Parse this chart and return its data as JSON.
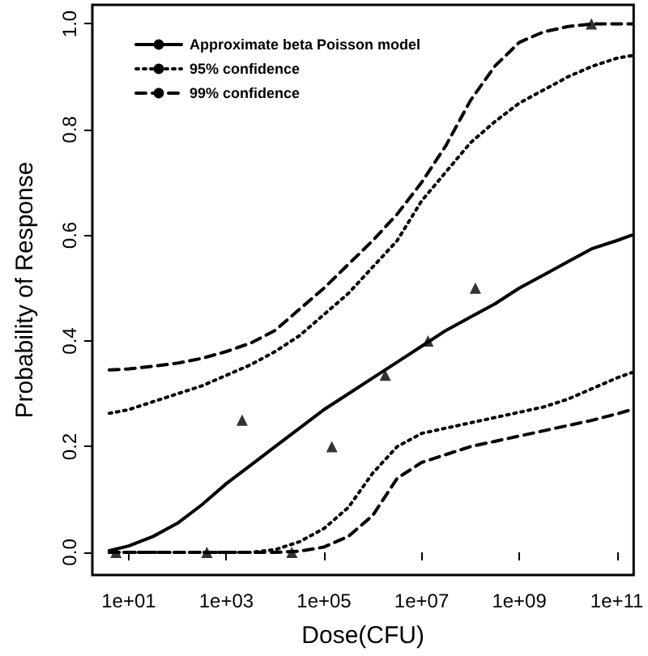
{
  "chart_data": {
    "type": "line",
    "xlabel": "Dose(CFU)",
    "ylabel": "Probability of Response",
    "x": [
      4,
      10,
      31.6,
      100,
      316,
      1000,
      3160,
      10000,
      31600,
      100000,
      316000,
      1000000,
      3160000,
      10000000,
      31600000,
      100000000,
      316000000,
      1000000000,
      3160000000,
      10000000000,
      31600000000,
      100000000000,
      200000000000
    ],
    "series": [
      {
        "name": "Approximate beta Poisson model",
        "color": "#000000",
        "line_style": "solid",
        "values": [
          0.003,
          0.012,
          0.03,
          0.055,
          0.09,
          0.13,
          0.165,
          0.2,
          0.235,
          0.27,
          0.3,
          0.33,
          0.36,
          0.39,
          0.42,
          0.445,
          0.47,
          0.5,
          0.525,
          0.55,
          0.575,
          0.59,
          0.6
        ]
      },
      {
        "name": "95% confidence",
        "color": "#000000",
        "line_style": "dotted",
        "values": [
          0.263,
          0.27,
          0.285,
          0.3,
          0.315,
          0.335,
          0.355,
          0.38,
          0.41,
          0.45,
          0.49,
          0.54,
          0.59,
          0.665,
          0.72,
          0.775,
          0.815,
          0.85,
          0.875,
          0.9,
          0.92,
          0.935,
          0.94
        ]
      },
      {
        "color": "#000000",
        "line_style": "dotted",
        "values": [
          0,
          0,
          0,
          0,
          0,
          0,
          0,
          0.005,
          0.02,
          0.045,
          0.085,
          0.15,
          0.2,
          0.225,
          0.235,
          0.245,
          0.255,
          0.265,
          0.275,
          0.29,
          0.31,
          0.33,
          0.34
        ]
      },
      {
        "name": "99% confidence",
        "color": "#000000",
        "line_style": "dashed",
        "values": [
          0.345,
          0.347,
          0.352,
          0.358,
          0.367,
          0.38,
          0.396,
          0.42,
          0.46,
          0.5,
          0.545,
          0.59,
          0.64,
          0.7,
          0.77,
          0.855,
          0.92,
          0.965,
          0.985,
          0.995,
          1.0,
          1.0,
          1.0
        ]
      },
      {
        "color": "#000000",
        "line_style": "dashed",
        "values": [
          0,
          0,
          0,
          0,
          0,
          0,
          0,
          0,
          0.002,
          0.01,
          0.03,
          0.07,
          0.14,
          0.17,
          0.185,
          0.2,
          0.21,
          0.22,
          0.23,
          0.24,
          0.25,
          0.262,
          0.27
        ]
      },
      {
        "type": "scatter",
        "color": "#000000",
        "marker": "triangle",
        "x": [
          5.5,
          400,
          2100,
          22000,
          145000,
          1800000,
          13500000,
          126000000,
          30000000000
        ],
        "values": [
          0,
          0,
          0.25,
          0,
          0.2,
          0.335,
          0.4,
          0.5,
          1.0
        ]
      }
    ],
    "log": "x",
    "xlim": [
      1.8,
      220000000000
    ],
    "xticks": [
      {
        "value": 10,
        "label": "1e+01"
      },
      {
        "value": 1000,
        "label": "1e+03"
      },
      {
        "value": 100000,
        "label": "1e+05"
      },
      {
        "value": 10000000,
        "label": "1e+07"
      },
      {
        "value": 1000000000,
        "label": "1e+09"
      },
      {
        "value": 100000000000,
        "label": "1e+11"
      }
    ],
    "ylim": [
      -0.043,
      1.036
    ],
    "yticks": [
      {
        "value": 0,
        "label": "0.0"
      },
      {
        "value": 0.2,
        "label": "0.2"
      },
      {
        "value": 0.4,
        "label": "0.4"
      },
      {
        "value": 0.6,
        "label": "0.6"
      },
      {
        "value": 0.8,
        "label": "0.8"
      },
      {
        "value": 1.0,
        "label": "1.0"
      }
    ],
    "grid": false,
    "legend": "top left",
    "marker": "none"
  }
}
